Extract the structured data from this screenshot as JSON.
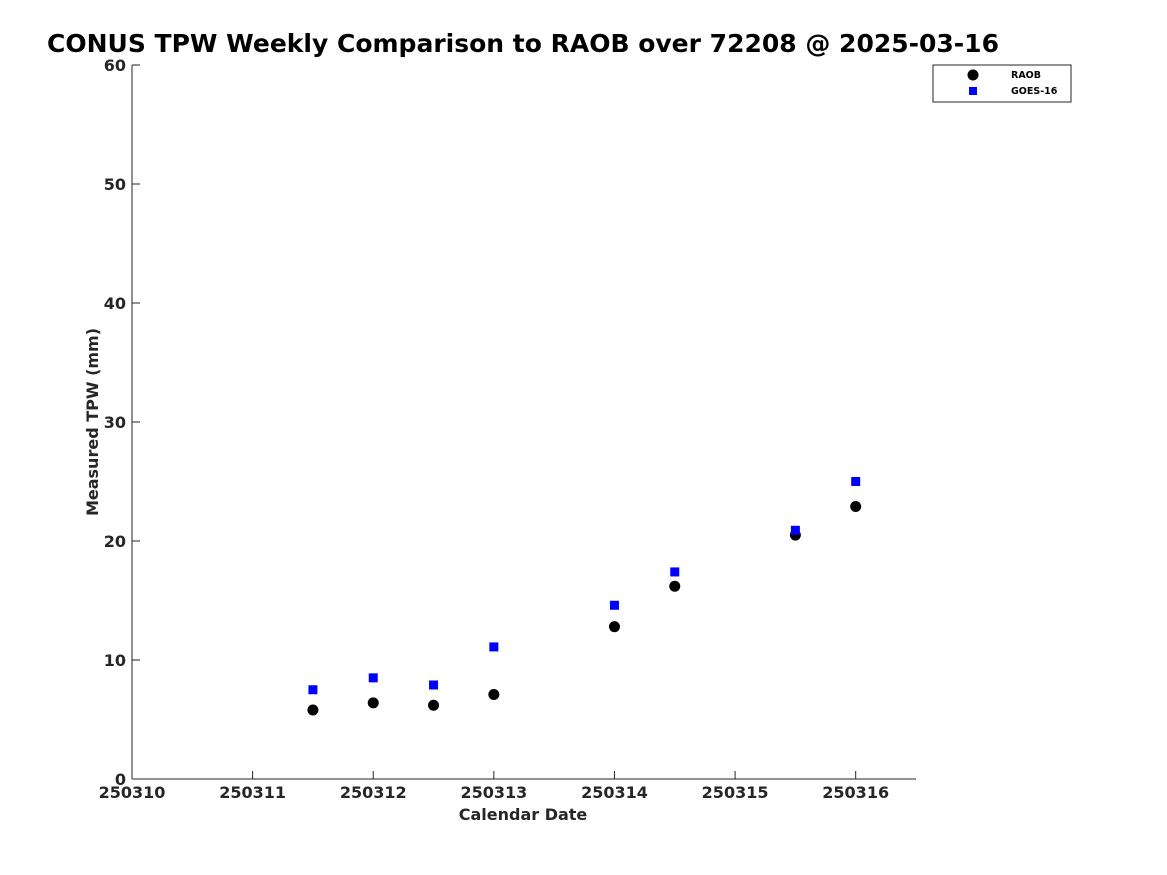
{
  "chart_data": {
    "type": "scatter",
    "title": "CONUS TPW Weekly Comparison to RAOB over 72208 @ 2025-03-16",
    "xlabel": "Calendar Date",
    "ylabel": "Measured TPW (mm)",
    "xlim": [
      250310,
      250316.5
    ],
    "ylim": [
      0,
      60
    ],
    "x_ticks": [
      "250310",
      "250311",
      "250312",
      "250313",
      "250314",
      "250315",
      "250316"
    ],
    "y_ticks": [
      "0",
      "10",
      "20",
      "30",
      "40",
      "50",
      "60"
    ],
    "grid": false,
    "legend_position": "top-right",
    "series": [
      {
        "name": "RAOB",
        "marker": "circle",
        "color": "#000000",
        "points": [
          {
            "x": 250311.5,
            "y": 5.8
          },
          {
            "x": 250312.0,
            "y": 6.4
          },
          {
            "x": 250312.5,
            "y": 6.2
          },
          {
            "x": 250313.0,
            "y": 7.1
          },
          {
            "x": 250314.0,
            "y": 12.8
          },
          {
            "x": 250314.5,
            "y": 16.2
          },
          {
            "x": 250315.5,
            "y": 20.5
          },
          {
            "x": 250316.0,
            "y": 22.9
          }
        ]
      },
      {
        "name": "GOES-16",
        "marker": "square",
        "color": "#0000ff",
        "points": [
          {
            "x": 250311.5,
            "y": 7.5
          },
          {
            "x": 250312.0,
            "y": 8.5
          },
          {
            "x": 250312.5,
            "y": 7.9
          },
          {
            "x": 250313.0,
            "y": 11.1
          },
          {
            "x": 250314.0,
            "y": 14.6
          },
          {
            "x": 250314.5,
            "y": 17.4
          },
          {
            "x": 250315.5,
            "y": 20.9
          },
          {
            "x": 250316.0,
            "y": 25.0
          }
        ]
      }
    ]
  }
}
